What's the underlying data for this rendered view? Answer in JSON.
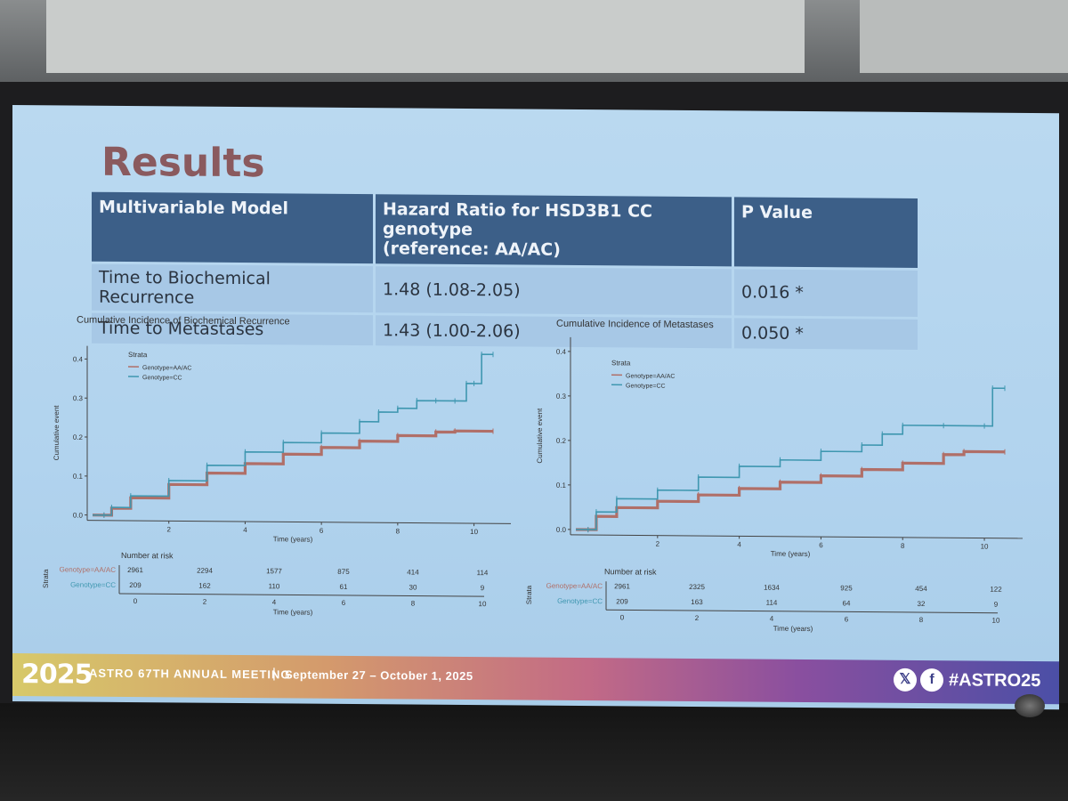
{
  "slide": {
    "title": "Results",
    "table": {
      "headers": [
        "Multivariable Model",
        "Hazard Ratio for HSD3B1 CC genotype (reference: AA/AC)",
        "P Value"
      ],
      "header_line1": "Hazard Ratio for HSD3B1 CC genotype",
      "header_line2": "(reference: AA/AC)",
      "rows": [
        {
          "model": "Time to Biochemical Recurrence",
          "hr": "1.48 (1.08-2.05)",
          "p": "0.016 *"
        },
        {
          "model": "Time to Metastases",
          "hr": "1.43 (1.00-2.06)",
          "p": "0.050 *"
        }
      ]
    },
    "footer": {
      "logo_text": "2025",
      "meeting": "ASTRO 67TH ANNUAL MEETING",
      "separator": "|",
      "dates": "September 27 – October 1, 2025",
      "social_x": "𝕏",
      "social_f": "f",
      "hashtag": "#ASTRO25"
    }
  },
  "colors": {
    "aa_ac": "#b06f68",
    "cc": "#3f97b0",
    "header_bg": "#3c5f88"
  },
  "chart_data": [
    {
      "type": "line",
      "title": "Cumulative Incidence of Biochemical Recurrence",
      "xlabel": "Time (years)",
      "ylabel": "Cumulative event",
      "xlim": [
        0,
        10.5
      ],
      "ylim": [
        0,
        0.42
      ],
      "xticks": [
        "2",
        "4",
        "6",
        "8",
        "10"
      ],
      "yticks": [
        "0.0",
        "0.1",
        "0.2",
        "0.3",
        "0.4"
      ],
      "legend_title": "Strata",
      "series": [
        {
          "name": "Genotype=AA/AC",
          "x": [
            0,
            0.3,
            0.5,
            1,
            2,
            3,
            4,
            5,
            6,
            7,
            8,
            9,
            9.5,
            10.5
          ],
          "y": [
            0,
            0,
            0.018,
            0.045,
            0.08,
            0.11,
            0.135,
            0.16,
            0.178,
            0.195,
            0.21,
            0.22,
            0.223,
            0.223
          ]
        },
        {
          "name": "Genotype=CC",
          "x": [
            0,
            0.3,
            0.5,
            1,
            2,
            3,
            4,
            5,
            6,
            7,
            7.5,
            8,
            8.5,
            9,
            9.5,
            9.8,
            10,
            10.2,
            10.5
          ],
          "y": [
            0,
            0,
            0.02,
            0.05,
            0.09,
            0.13,
            0.165,
            0.19,
            0.215,
            0.245,
            0.27,
            0.28,
            0.3,
            0.3,
            0.3,
            0.345,
            0.345,
            0.42,
            0.42
          ]
        }
      ],
      "risk_table": {
        "label": "Number at risk",
        "strata_label": "Strata",
        "xlabel": "Time (years)",
        "xticks": [
          "0",
          "2",
          "4",
          "6",
          "8",
          "10"
        ],
        "rows": [
          {
            "name": "Genotype=AA/AC",
            "values": [
              "2961",
              "2294",
              "1577",
              "875",
              "414",
              "114"
            ]
          },
          {
            "name": "Genotype=CC",
            "values": [
              "209",
              "162",
              "110",
              "61",
              "30",
              "9"
            ]
          }
        ]
      }
    },
    {
      "type": "line",
      "title": "Cumulative Incidence of Metastases",
      "xlabel": "Time (years)",
      "ylabel": "Cumulative event",
      "xlim": [
        0,
        10.5
      ],
      "ylim": [
        0,
        0.42
      ],
      "xticks": [
        "2",
        "4",
        "6",
        "8",
        "10"
      ],
      "yticks": [
        "0.0",
        "0.1",
        "0.2",
        "0.3",
        "0.4"
      ],
      "legend_title": "Strata",
      "series": [
        {
          "name": "Genotype=AA/AC",
          "x": [
            0,
            0.3,
            0.5,
            1,
            2,
            3,
            4,
            5,
            6,
            7,
            8,
            9,
            9.5,
            10.5
          ],
          "y": [
            0,
            0,
            0.03,
            0.05,
            0.065,
            0.08,
            0.095,
            0.11,
            0.125,
            0.14,
            0.155,
            0.175,
            0.182,
            0.182
          ]
        },
        {
          "name": "Genotype=CC",
          "x": [
            0,
            0.3,
            0.5,
            1,
            2,
            3,
            4,
            5,
            6,
            7,
            7.5,
            8,
            9,
            10,
            10.2,
            10.5
          ],
          "y": [
            0,
            0,
            0.04,
            0.07,
            0.09,
            0.12,
            0.145,
            0.16,
            0.18,
            0.195,
            0.22,
            0.24,
            0.24,
            0.24,
            0.325,
            0.325
          ]
        }
      ],
      "risk_table": {
        "label": "Number at risk",
        "strata_label": "Strata",
        "xlabel": "Time (years)",
        "xticks": [
          "0",
          "2",
          "4",
          "6",
          "8",
          "10"
        ],
        "rows": [
          {
            "name": "Genotype=AA/AC",
            "values": [
              "2961",
              "2325",
              "1634",
              "925",
              "454",
              "122"
            ]
          },
          {
            "name": "Genotype=CC",
            "values": [
              "209",
              "163",
              "114",
              "64",
              "32",
              "9"
            ]
          }
        ]
      }
    }
  ]
}
